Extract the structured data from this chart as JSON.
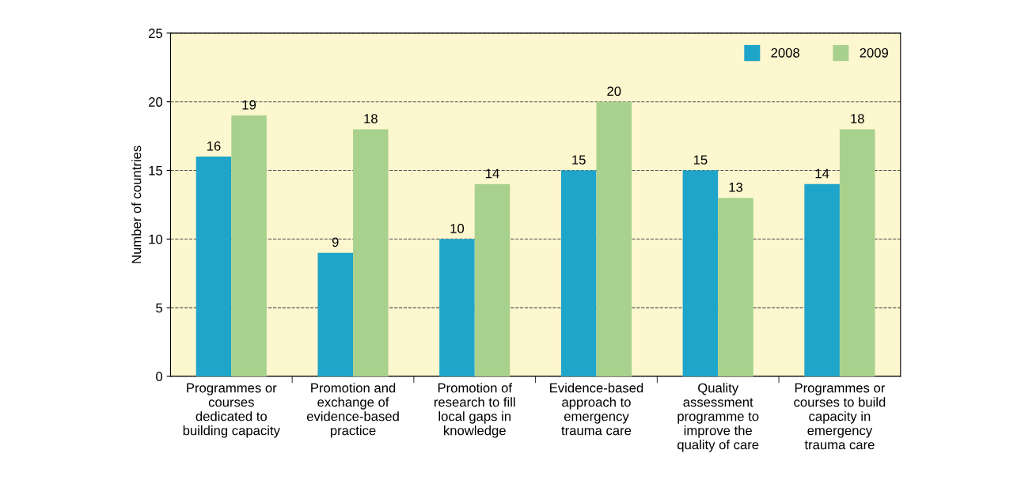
{
  "chart_data": {
    "type": "bar",
    "ylabel": "Number of countries",
    "categories": [
      "Programmes or\ncourses\ndedicated to\nbuilding capacity",
      "Promotion and\nexchange of\nevidence-based\npractice",
      "Promotion of\nresearch to fill\nlocal gaps in\nknowledge",
      "Evidence-based\napproach to\nemergency\ntrauma care",
      "Quality\nassessment\nprogramme to\nimprove the\nquality of care",
      "Programmes or\ncourses to build\ncapacity in\nemergency\ntrauma care"
    ],
    "series": [
      {
        "name": "2008",
        "color": "#1ea5c9",
        "values": [
          16,
          9,
          10,
          15,
          15,
          14
        ]
      },
      {
        "name": "2009",
        "color": "#a9d18e",
        "values": [
          19,
          18,
          14,
          20,
          13,
          18
        ]
      }
    ],
    "ylim": [
      0,
      25
    ],
    "yticks": [
      0,
      5,
      10,
      15,
      20,
      25
    ],
    "grid": "y",
    "legend": "top right",
    "data_labels": true
  }
}
